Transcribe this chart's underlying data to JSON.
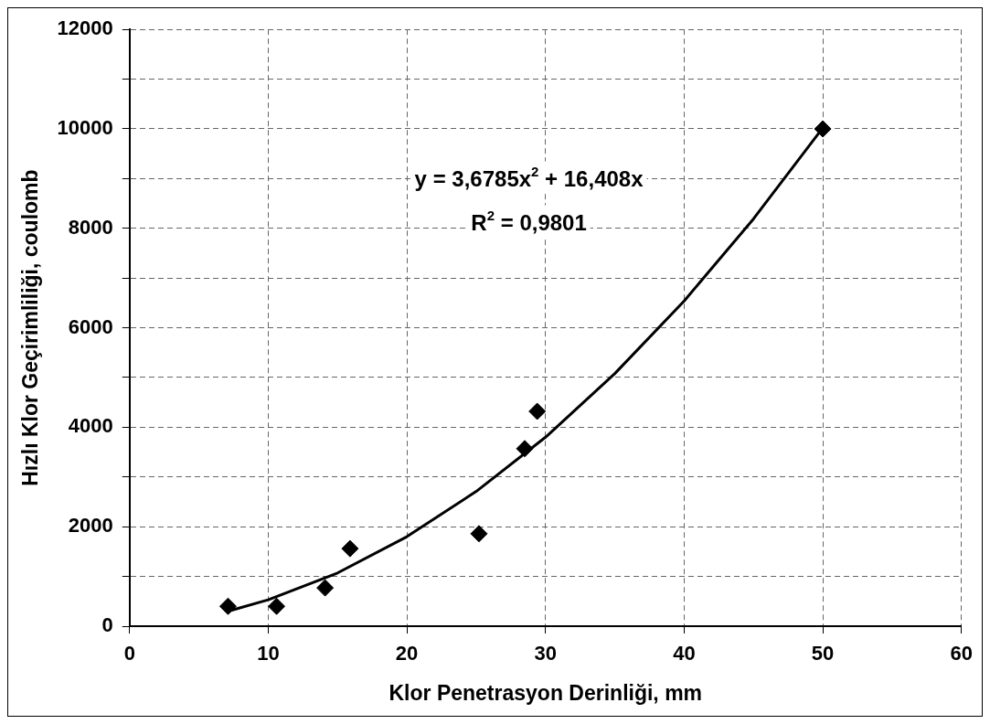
{
  "chart_data": {
    "type": "scatter",
    "xlabel": "Klor Penetrasyon Derinliği, mm",
    "ylabel": "Hızlı Klor Geçirimliliği, coulomb",
    "xlim": [
      0,
      60
    ],
    "xticks": [
      0,
      10,
      20,
      30,
      40,
      50,
      60
    ],
    "ylim": [
      0,
      12000
    ],
    "yticks": [
      0,
      {
        "value": 1000,
        "label": null
      },
      2000,
      {
        "value": 3000,
        "label": null
      },
      4000,
      {
        "value": 5000,
        "label": null
      },
      6000,
      {
        "value": 7000,
        "label": null
      },
      8000,
      {
        "value": 9000,
        "label": null
      },
      10000,
      {
        "value": 11000,
        "label": null
      },
      12000
    ],
    "grid": true,
    "marker": "diamond",
    "series": [
      {
        "color": "#000000",
        "x": [
          7.1,
          10.6,
          14.1,
          15.9,
          25.2,
          28.5,
          29.4,
          50
        ],
        "values": [
          400,
          400,
          770,
          1560,
          1860,
          3570,
          4320,
          10000
        ]
      },
      {
        "type": "line",
        "color": "#000000",
        "marker": "none",
        "line_style": "solid",
        "x": [
          7.1,
          10,
          15,
          20,
          25,
          30,
          35,
          40,
          45,
          50
        ],
        "values": [
          300,
          530,
          1070,
          1800,
          2710,
          3800,
          5080,
          6540,
          8190,
          10020
        ]
      }
    ],
    "annotations": [
      "y = 3,6785x$^{2}$ + 16,408x",
      "R$^{2}$ = 0,9801"
    ]
  }
}
